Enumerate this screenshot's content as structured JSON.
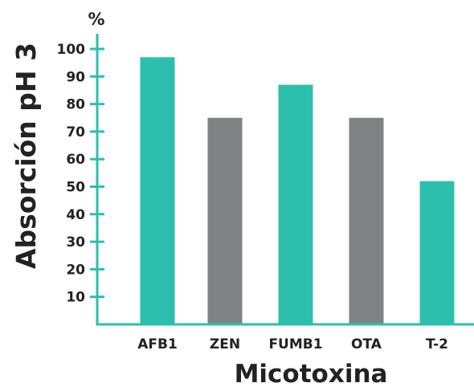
{
  "chart_data": {
    "type": "bar",
    "title": "",
    "xlabel": "Micotoxina",
    "ylabel": "Absorción pH 3",
    "yunit": "%",
    "categories": [
      "AFB1",
      "ZEN",
      "FUMB1",
      "OTA",
      "T-2"
    ],
    "values": [
      97,
      75,
      87,
      75,
      52
    ],
    "bar_colors": [
      "#2cbfae",
      "#808183",
      "#2cbfae",
      "#808183",
      "#2cbfae"
    ],
    "yticks": [
      10,
      20,
      30,
      40,
      50,
      60,
      70,
      80,
      90,
      100
    ],
    "ylim": [
      0,
      100
    ],
    "grid": false,
    "axis_color": "#2cbfae",
    "text_color": "#222222"
  }
}
